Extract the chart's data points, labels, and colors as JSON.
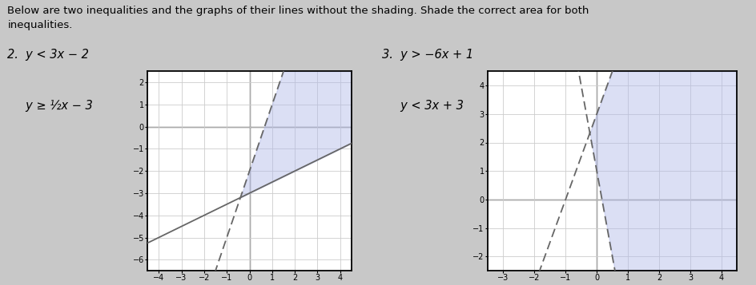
{
  "title_text": "Below are two inequalities and the graphs of their lines without the shading. Shade the correct area for both\ninequalities.",
  "graph2": {
    "label_line1": "2.  y < 3x − 2",
    "label_line2": "     y ≥ ½x − 3",
    "xlim": [
      -4.5,
      4.5
    ],
    "ylim": [
      -6.5,
      2.5
    ],
    "xticks": [
      -4,
      -3,
      -2,
      -1,
      0,
      1,
      2,
      3,
      4
    ],
    "yticks": [
      -6,
      -5,
      -4,
      -3,
      -2,
      -1,
      0,
      1,
      2
    ],
    "line1_slope": 3,
    "line1_intercept": -2,
    "line1_style": "dashed",
    "line1_color": "#666666",
    "line2_slope": 0.5,
    "line2_intercept": -3,
    "line2_style": "solid",
    "line2_color": "#666666",
    "shade_color": "#b0b8e8",
    "shade_alpha": 0.45
  },
  "graph3": {
    "label_line1": "3.  y > −6x + 1",
    "label_line2": "     y < 3x + 3",
    "xlim": [
      -3.5,
      4.5
    ],
    "ylim": [
      -2.5,
      4.5
    ],
    "xticks": [
      -3,
      -2,
      -1,
      0,
      1,
      2,
      3,
      4
    ],
    "yticks": [
      -2,
      -1,
      0,
      1,
      2,
      3,
      4
    ],
    "line1_slope": -6,
    "line1_intercept": 1,
    "line1_style": "dashed",
    "line1_color": "#666666",
    "line2_slope": 3,
    "line2_intercept": 3,
    "line2_style": "dashed",
    "line2_color": "#666666",
    "shade_color": "#b0b8e8",
    "shade_alpha": 0.45
  },
  "fig_bg": "#c8c8c8",
  "axes_bg": "#ffffff",
  "grid_color": "#cccccc",
  "tick_fontsize": 7,
  "label_fontsize": 10.5
}
